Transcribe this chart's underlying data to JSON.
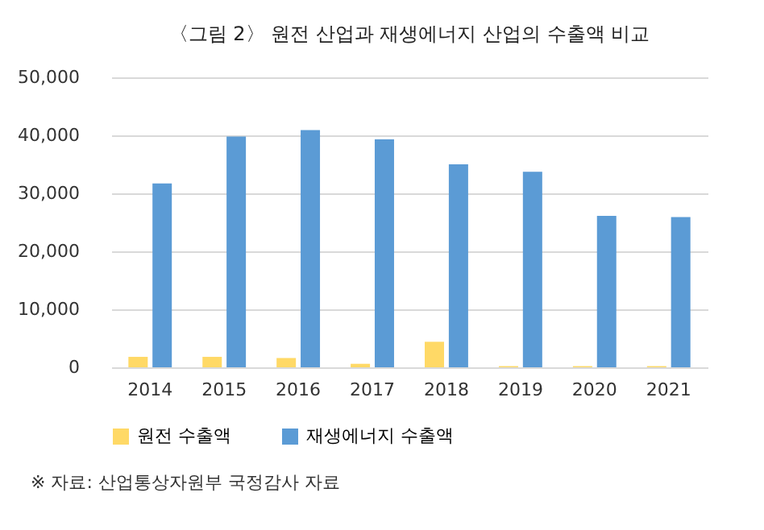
{
  "chart_data": {
    "type": "bar",
    "title": "〈그림 2〉 원전 산업과 재생에너지 산업의 수출액 비교",
    "categories": [
      "2014",
      "2015",
      "2016",
      "2017",
      "2018",
      "2019",
      "2020",
      "2021"
    ],
    "series": [
      {
        "name": "원전 수출액",
        "color": "#ffd966",
        "values": [
          1800,
          1800,
          1600,
          600,
          4400,
          200,
          200,
          200
        ]
      },
      {
        "name": "재생에너지 수출액",
        "color": "#5b9bd5",
        "values": [
          31700,
          39800,
          40900,
          39300,
          35000,
          33700,
          26100,
          25900
        ]
      }
    ],
    "ylim": [
      0,
      50000
    ],
    "yticks": [
      {
        "value": 0,
        "label": "0"
      },
      {
        "value": 10000,
        "label": "10,000"
      },
      {
        "value": 20000,
        "label": "20,000"
      },
      {
        "value": 30000,
        "label": "30,000"
      },
      {
        "value": 40000,
        "label": "40,000"
      },
      {
        "value": 50000,
        "label": "50,000"
      }
    ],
    "grid": "y",
    "legend": "bottom",
    "annotations": [
      "※  자료: 산업통상자원부 국정감사 자료"
    ]
  }
}
